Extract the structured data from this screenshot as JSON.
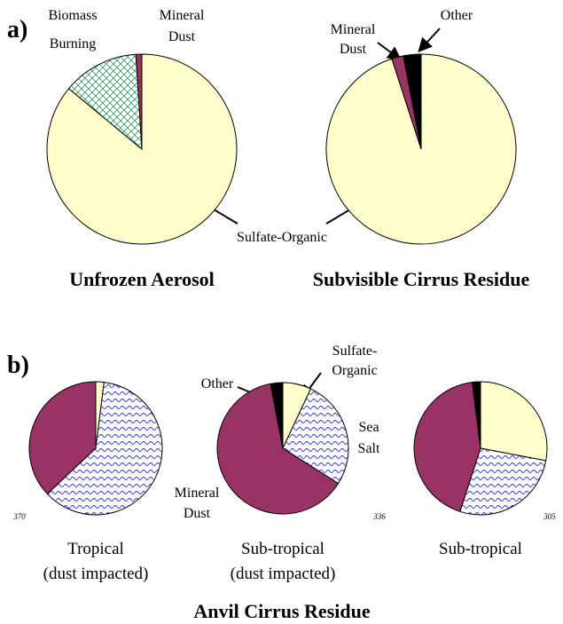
{
  "panel_labels": [
    "a)",
    "b)"
  ],
  "group_title": "Anvil Cirrus Residue",
  "chart_data": [
    {
      "type": "pie",
      "title": [
        "Unfrozen Aerosol"
      ],
      "values": [
        86,
        13,
        1
      ],
      "colors": [
        "#ffffcc",
        "#339966",
        "#993366"
      ],
      "patterns": [
        null,
        "hatch",
        null
      ],
      "annotations": [
        "Biomass",
        "Burning",
        "Mineral",
        "Dust",
        "Sulfate-Organic"
      ]
    },
    {
      "type": "pie",
      "title": [
        "Subvisible Cirrus Residue"
      ],
      "values": [
        95,
        2,
        3
      ],
      "colors": [
        "#ffffcc",
        "#993366",
        "#000000"
      ],
      "patterns": [
        null,
        null,
        null
      ],
      "annotations": [
        "Mineral",
        "Dust",
        "Other"
      ]
    },
    {
      "type": "pie",
      "title": [
        "Tropical",
        "(dust impacted)"
      ],
      "n": 370,
      "values": [
        2,
        61,
        37
      ],
      "colors": [
        "#ffffcc",
        "#3333cc",
        "#993366"
      ],
      "patterns": [
        null,
        "wave",
        null
      ]
    },
    {
      "type": "pie",
      "title": [
        "Sub-tropical",
        "(dust impacted)"
      ],
      "n": 336,
      "values": [
        7,
        27,
        63,
        3
      ],
      "colors": [
        "#ffffcc",
        "#3333cc",
        "#993366",
        "#000000"
      ],
      "patterns": [
        null,
        "wave",
        null,
        null
      ],
      "annotations": [
        "Other",
        "Sulfate-",
        "Organic",
        "Sea",
        "Salt",
        "Mineral",
        "Dust"
      ]
    },
    {
      "type": "pie",
      "title": [
        "Sub-tropical"
      ],
      "n": 305,
      "values": [
        28,
        27,
        43,
        2
      ],
      "colors": [
        "#ffffcc",
        "#3333cc",
        "#993366",
        "#000000"
      ],
      "patterns": [
        null,
        "wave",
        null,
        null
      ]
    }
  ]
}
